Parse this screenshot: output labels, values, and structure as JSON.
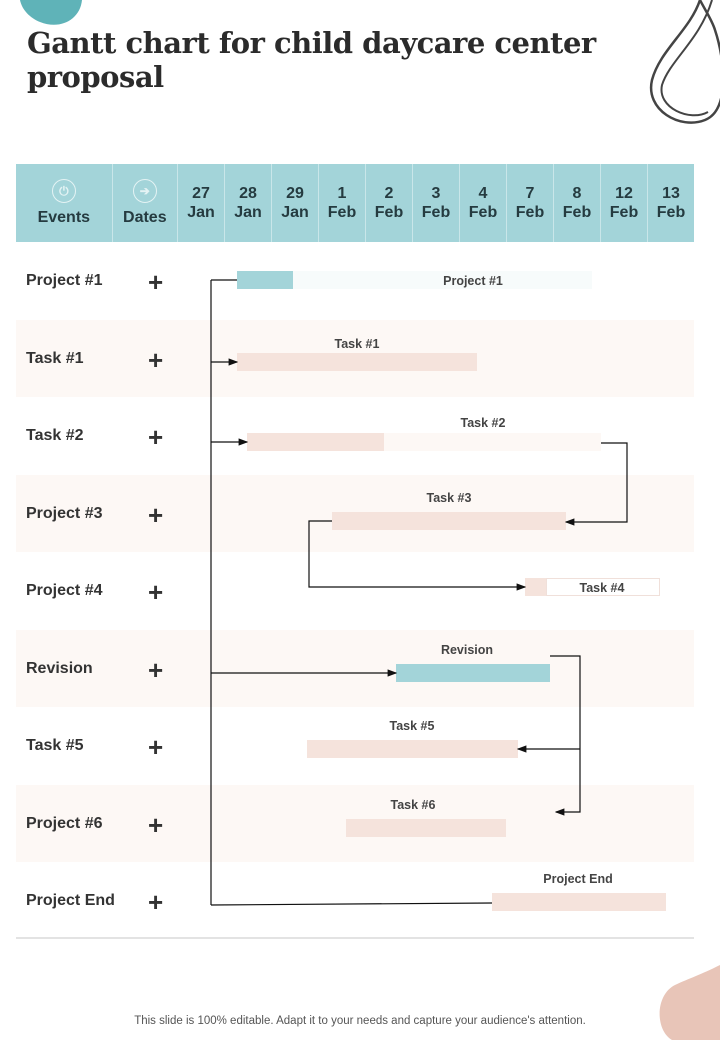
{
  "title": "Gantt chart for child daycare center proposal",
  "header": {
    "events_label": "Events",
    "dates_label": "Dates",
    "events_icon": "power-icon",
    "dates_icon": "arrow-circle-icon",
    "dates": [
      [
        "27",
        "Jan"
      ],
      [
        "28",
        "Jan"
      ],
      [
        "29",
        "Jan"
      ],
      [
        "1",
        "Feb"
      ],
      [
        "2",
        "Feb"
      ],
      [
        "3",
        "Feb"
      ],
      [
        "4",
        "Feb"
      ],
      [
        "7",
        "Feb"
      ],
      [
        "8",
        "Feb"
      ],
      [
        "12",
        "Feb"
      ],
      [
        "13",
        "Feb"
      ]
    ]
  },
  "plus_symbol": "+",
  "footer": "This slide is 100% editable. Adapt it to your needs and capture your audience's attention.",
  "colors": {
    "header": "#a3d4d9",
    "teal_bar": "#a3d4d9",
    "pink_bar": "#f5e3dc",
    "row_alt": "#fdf8f5"
  },
  "chart_data": {
    "type": "bar",
    "rows": [
      "Project #1",
      "Task #1",
      "Task #2",
      "Project #3",
      "Project #4",
      "Revision",
      "Task #5",
      "Project #6",
      "Project End"
    ],
    "bars": [
      {
        "row": "Project #1",
        "label": "Project #1",
        "color": "teal"
      },
      {
        "row": "Task #1",
        "label": "Task #1",
        "color": "pink"
      },
      {
        "row": "Task #2",
        "label": "Task #2",
        "color": "pink"
      },
      {
        "row": "Project #3",
        "label": "Task #3",
        "color": "pink"
      },
      {
        "row": "Project #4",
        "label": "Task #4",
        "color": "pink"
      },
      {
        "row": "Revision",
        "label": "Revision",
        "color": "teal"
      },
      {
        "row": "Task #5",
        "label": "Task #5",
        "color": "pink"
      },
      {
        "row": "Project #6",
        "label": "Task #6",
        "color": "pink"
      },
      {
        "row": "Project End",
        "label": "Project End",
        "color": "pink"
      }
    ]
  }
}
